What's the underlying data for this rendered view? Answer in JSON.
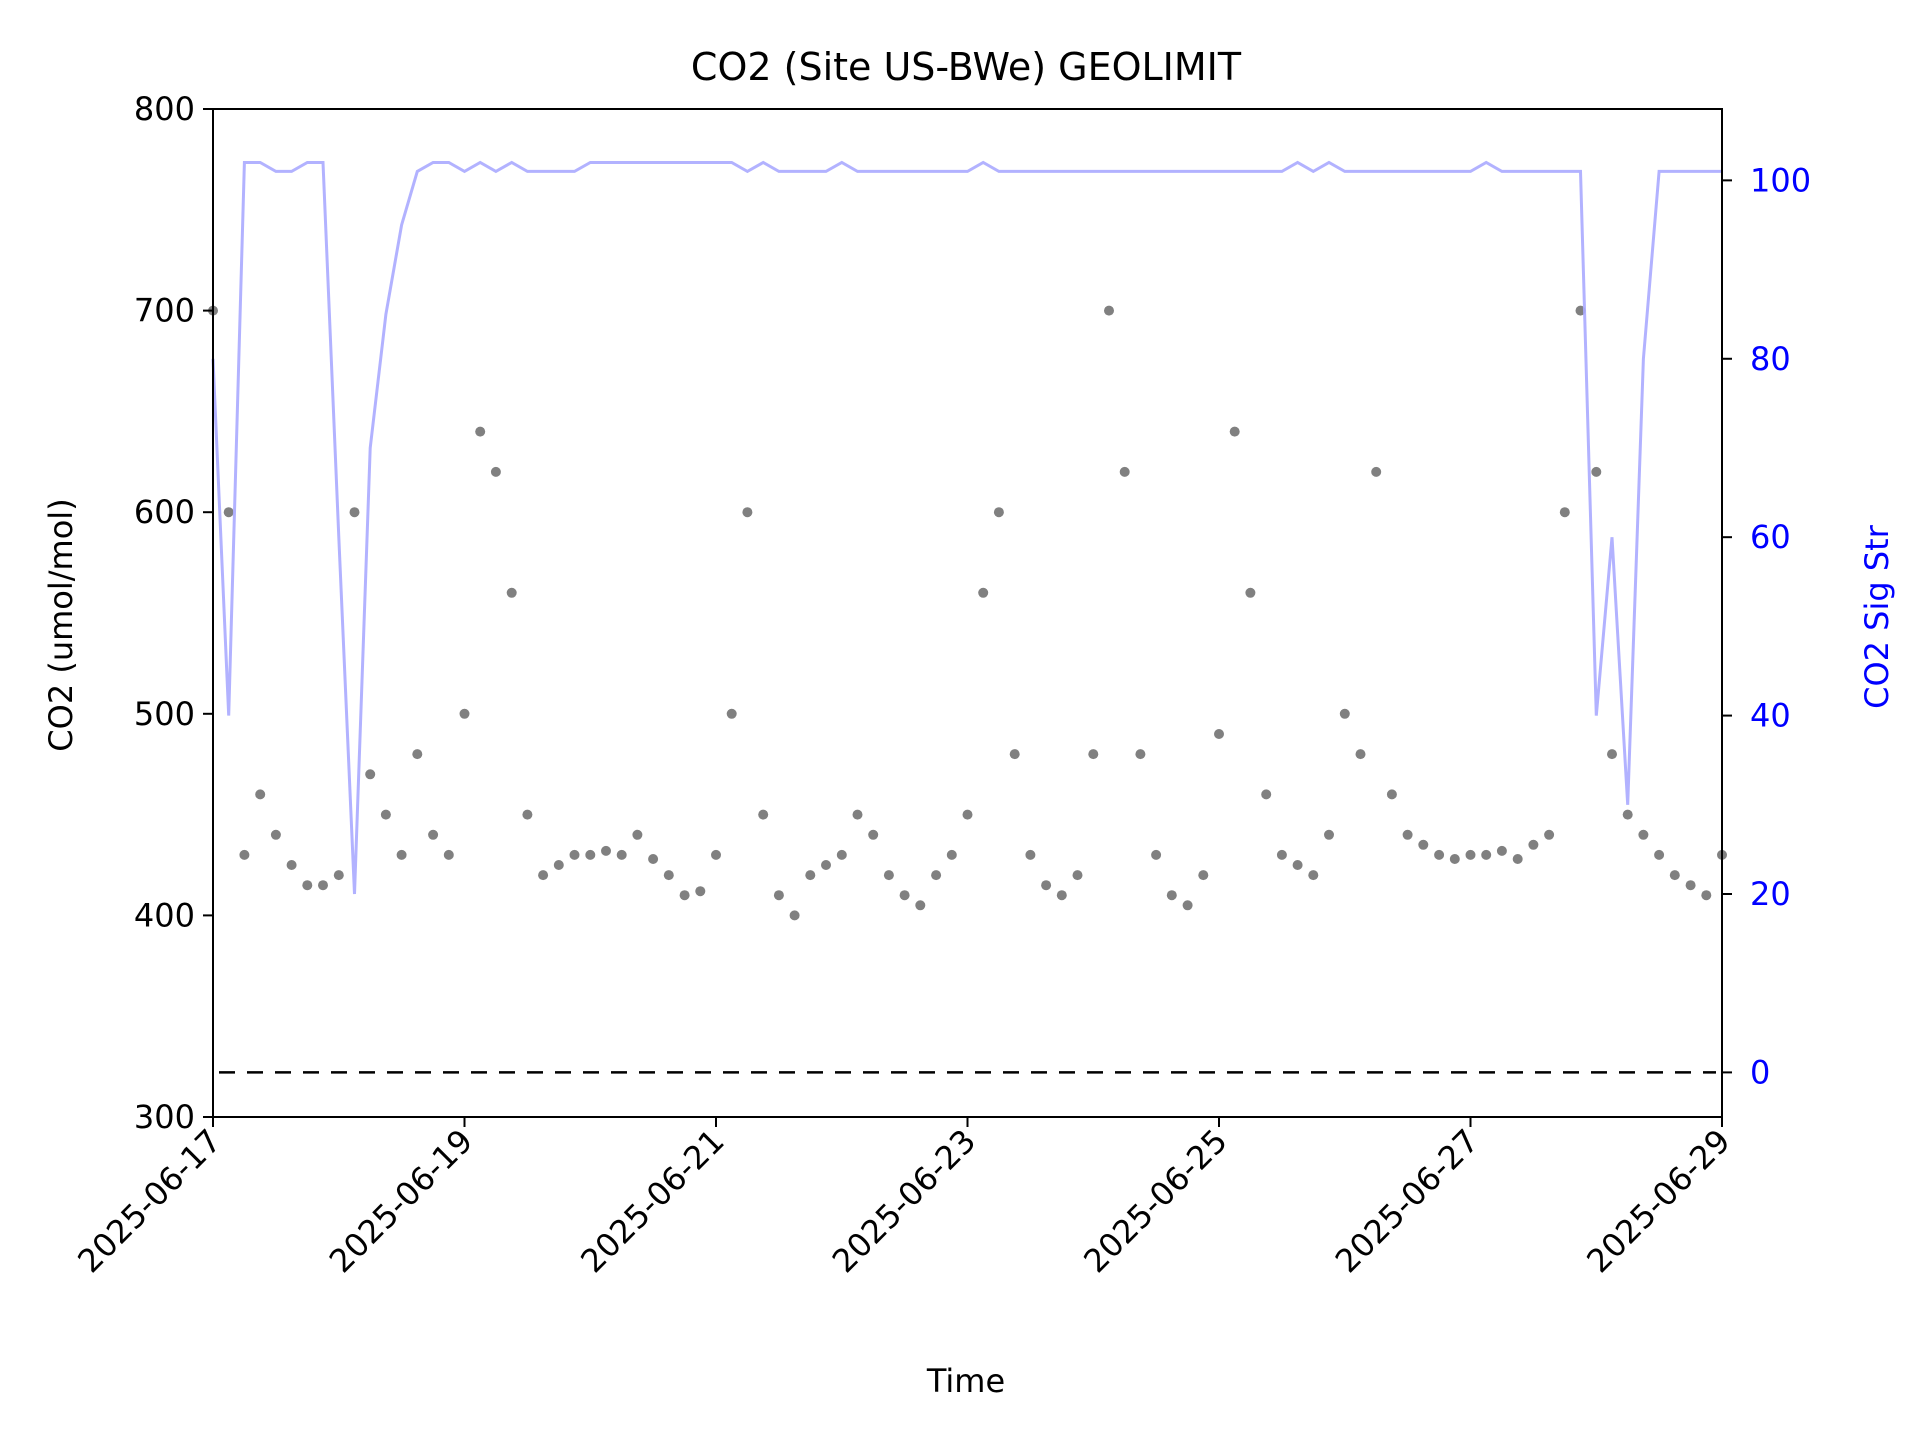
{
  "chart_data": {
    "type": "scatter",
    "title": "CO2 (Site US-BWe) GEOLIMIT",
    "xlabel": "Time",
    "ylabel": "CO2 (umol/mol)",
    "y2label": "CO2 Sig Str",
    "xlim": [
      "2025-06-17",
      "2025-06-29"
    ],
    "ylim": [
      300,
      800
    ],
    "y2lim": [
      -5,
      108
    ],
    "x_ticks": [
      "2025-06-17",
      "2025-06-19",
      "2025-06-21",
      "2025-06-23",
      "2025-06-25",
      "2025-06-27",
      "2025-06-29"
    ],
    "y_ticks": [
      "300",
      "400",
      "500",
      "600",
      "700",
      "800"
    ],
    "y2_ticks": [
      "0",
      "20",
      "40",
      "60",
      "80",
      "100"
    ],
    "grid": false,
    "colors": {
      "co2": "#808080",
      "sig": "#aaaaff",
      "y2axis": "#0000ff",
      "reference": "#000000"
    },
    "reference_line": {
      "axis": "y2",
      "value": 0,
      "style": "dashed"
    },
    "series": [
      {
        "axis": "y",
        "style": "points",
        "x": [
          "2025-06-17 00:00",
          "2025-06-17 03:00",
          "2025-06-17 06:00",
          "2025-06-17 09:00",
          "2025-06-17 12:00",
          "2025-06-17 15:00",
          "2025-06-17 18:00",
          "2025-06-17 21:00",
          "2025-06-18 00:00",
          "2025-06-18 03:00",
          "2025-06-18 06:00",
          "2025-06-18 09:00",
          "2025-06-18 12:00",
          "2025-06-18 15:00",
          "2025-06-18 18:00",
          "2025-06-18 21:00",
          "2025-06-19 00:00",
          "2025-06-19 03:00",
          "2025-06-19 06:00",
          "2025-06-19 09:00",
          "2025-06-19 12:00",
          "2025-06-19 15:00",
          "2025-06-19 18:00",
          "2025-06-19 21:00",
          "2025-06-20 00:00",
          "2025-06-20 03:00",
          "2025-06-20 06:00",
          "2025-06-20 09:00",
          "2025-06-20 12:00",
          "2025-06-20 15:00",
          "2025-06-20 18:00",
          "2025-06-20 21:00",
          "2025-06-21 00:00",
          "2025-06-21 03:00",
          "2025-06-21 06:00",
          "2025-06-21 09:00",
          "2025-06-21 12:00",
          "2025-06-21 15:00",
          "2025-06-21 18:00",
          "2025-06-21 21:00",
          "2025-06-22 00:00",
          "2025-06-22 03:00",
          "2025-06-22 06:00",
          "2025-06-22 09:00",
          "2025-06-22 12:00",
          "2025-06-22 15:00",
          "2025-06-22 18:00",
          "2025-06-22 21:00",
          "2025-06-23 00:00",
          "2025-06-23 03:00",
          "2025-06-23 06:00",
          "2025-06-23 09:00",
          "2025-06-23 12:00",
          "2025-06-23 15:00",
          "2025-06-23 18:00",
          "2025-06-23 21:00",
          "2025-06-24 00:00",
          "2025-06-24 03:00",
          "2025-06-24 06:00",
          "2025-06-24 09:00",
          "2025-06-24 12:00",
          "2025-06-24 15:00",
          "2025-06-24 18:00",
          "2025-06-24 21:00",
          "2025-06-25 00:00",
          "2025-06-25 03:00",
          "2025-06-25 06:00",
          "2025-06-25 09:00",
          "2025-06-25 12:00",
          "2025-06-25 15:00",
          "2025-06-25 18:00",
          "2025-06-25 21:00",
          "2025-06-26 00:00",
          "2025-06-26 03:00",
          "2025-06-26 06:00",
          "2025-06-26 09:00",
          "2025-06-26 12:00",
          "2025-06-26 15:00",
          "2025-06-26 18:00",
          "2025-06-26 21:00",
          "2025-06-27 00:00",
          "2025-06-27 03:00",
          "2025-06-27 06:00",
          "2025-06-27 09:00",
          "2025-06-27 12:00",
          "2025-06-27 15:00",
          "2025-06-27 18:00",
          "2025-06-27 21:00",
          "2025-06-28 00:00",
          "2025-06-28 03:00",
          "2025-06-28 06:00",
          "2025-06-28 09:00",
          "2025-06-28 12:00",
          "2025-06-28 15:00",
          "2025-06-28 18:00",
          "2025-06-28 21:00",
          "2025-06-29 00:00"
        ],
        "y": [
          700,
          600,
          430,
          460,
          440,
          425,
          415,
          415,
          420,
          600,
          470,
          450,
          430,
          480,
          440,
          430,
          500,
          640,
          620,
          560,
          450,
          420,
          425,
          430,
          430,
          432,
          430,
          440,
          428,
          420,
          410,
          412,
          430,
          500,
          600,
          450,
          410,
          400,
          420,
          425,
          430,
          450,
          440,
          420,
          410,
          405,
          420,
          430,
          450,
          560,
          600,
          480,
          430,
          415,
          410,
          420,
          480,
          700,
          620,
          480,
          430,
          410,
          405,
          420,
          490,
          640,
          560,
          460,
          430,
          425,
          420,
          440,
          500,
          480,
          620,
          460,
          440,
          435,
          430,
          428,
          430,
          430,
          432,
          428,
          435,
          440,
          600,
          700,
          620,
          480,
          450,
          440,
          430,
          420,
          415,
          410,
          430
        ]
      },
      {
        "axis": "y2",
        "style": "line",
        "x": [
          "2025-06-17 00:00",
          "2025-06-17 03:00",
          "2025-06-17 06:00",
          "2025-06-17 09:00",
          "2025-06-17 12:00",
          "2025-06-17 15:00",
          "2025-06-17 18:00",
          "2025-06-17 21:00",
          "2025-06-18 00:00",
          "2025-06-18 03:00",
          "2025-06-18 06:00",
          "2025-06-18 09:00",
          "2025-06-18 12:00",
          "2025-06-18 15:00",
          "2025-06-18 18:00",
          "2025-06-18 21:00",
          "2025-06-19 00:00",
          "2025-06-19 03:00",
          "2025-06-19 06:00",
          "2025-06-19 09:00",
          "2025-06-19 12:00",
          "2025-06-19 15:00",
          "2025-06-19 18:00",
          "2025-06-19 21:00",
          "2025-06-20 00:00",
          "2025-06-20 03:00",
          "2025-06-20 06:00",
          "2025-06-20 09:00",
          "2025-06-20 12:00",
          "2025-06-20 15:00",
          "2025-06-20 18:00",
          "2025-06-20 21:00",
          "2025-06-21 00:00",
          "2025-06-21 03:00",
          "2025-06-21 06:00",
          "2025-06-21 09:00",
          "2025-06-21 12:00",
          "2025-06-21 15:00",
          "2025-06-21 18:00",
          "2025-06-21 21:00",
          "2025-06-22 00:00",
          "2025-06-22 03:00",
          "2025-06-22 06:00",
          "2025-06-22 09:00",
          "2025-06-22 12:00",
          "2025-06-22 15:00",
          "2025-06-22 18:00",
          "2025-06-22 21:00",
          "2025-06-23 00:00",
          "2025-06-23 03:00",
          "2025-06-23 06:00",
          "2025-06-23 09:00",
          "2025-06-23 12:00",
          "2025-06-23 15:00",
          "2025-06-23 18:00",
          "2025-06-23 21:00",
          "2025-06-24 00:00",
          "2025-06-24 03:00",
          "2025-06-24 06:00",
          "2025-06-24 09:00",
          "2025-06-24 12:00",
          "2025-06-24 15:00",
          "2025-06-24 18:00",
          "2025-06-24 21:00",
          "2025-06-25 00:00",
          "2025-06-25 03:00",
          "2025-06-25 06:00",
          "2025-06-25 09:00",
          "2025-06-25 12:00",
          "2025-06-25 15:00",
          "2025-06-25 18:00",
          "2025-06-25 21:00",
          "2025-06-26 00:00",
          "2025-06-26 03:00",
          "2025-06-26 06:00",
          "2025-06-26 09:00",
          "2025-06-26 12:00",
          "2025-06-26 15:00",
          "2025-06-26 18:00",
          "2025-06-26 21:00",
          "2025-06-27 00:00",
          "2025-06-27 03:00",
          "2025-06-27 06:00",
          "2025-06-27 09:00",
          "2025-06-27 12:00",
          "2025-06-27 15:00",
          "2025-06-27 18:00",
          "2025-06-27 21:00",
          "2025-06-28 00:00",
          "2025-06-28 03:00",
          "2025-06-28 06:00",
          "2025-06-28 09:00",
          "2025-06-28 12:00",
          "2025-06-28 15:00",
          "2025-06-28 18:00",
          "2025-06-28 21:00",
          "2025-06-29 00:00"
        ],
        "y": [
          80,
          40,
          102,
          102,
          101,
          101,
          102,
          102,
          60,
          20,
          70,
          85,
          95,
          101,
          102,
          102,
          101,
          102,
          101,
          102,
          101,
          101,
          101,
          101,
          102,
          102,
          102,
          102,
          102,
          102,
          102,
          102,
          102,
          102,
          101,
          102,
          101,
          101,
          101,
          101,
          102,
          101,
          101,
          101,
          101,
          101,
          101,
          101,
          101,
          102,
          101,
          101,
          101,
          101,
          101,
          101,
          101,
          101,
          101,
          101,
          101,
          101,
          101,
          101,
          101,
          101,
          101,
          101,
          101,
          102,
          101,
          102,
          101,
          101,
          101,
          101,
          101,
          101,
          101,
          101,
          101,
          102,
          101,
          101,
          101,
          101,
          101,
          101,
          40,
          60,
          30,
          80,
          101,
          101,
          101,
          101,
          101
        ]
      }
    ]
  }
}
